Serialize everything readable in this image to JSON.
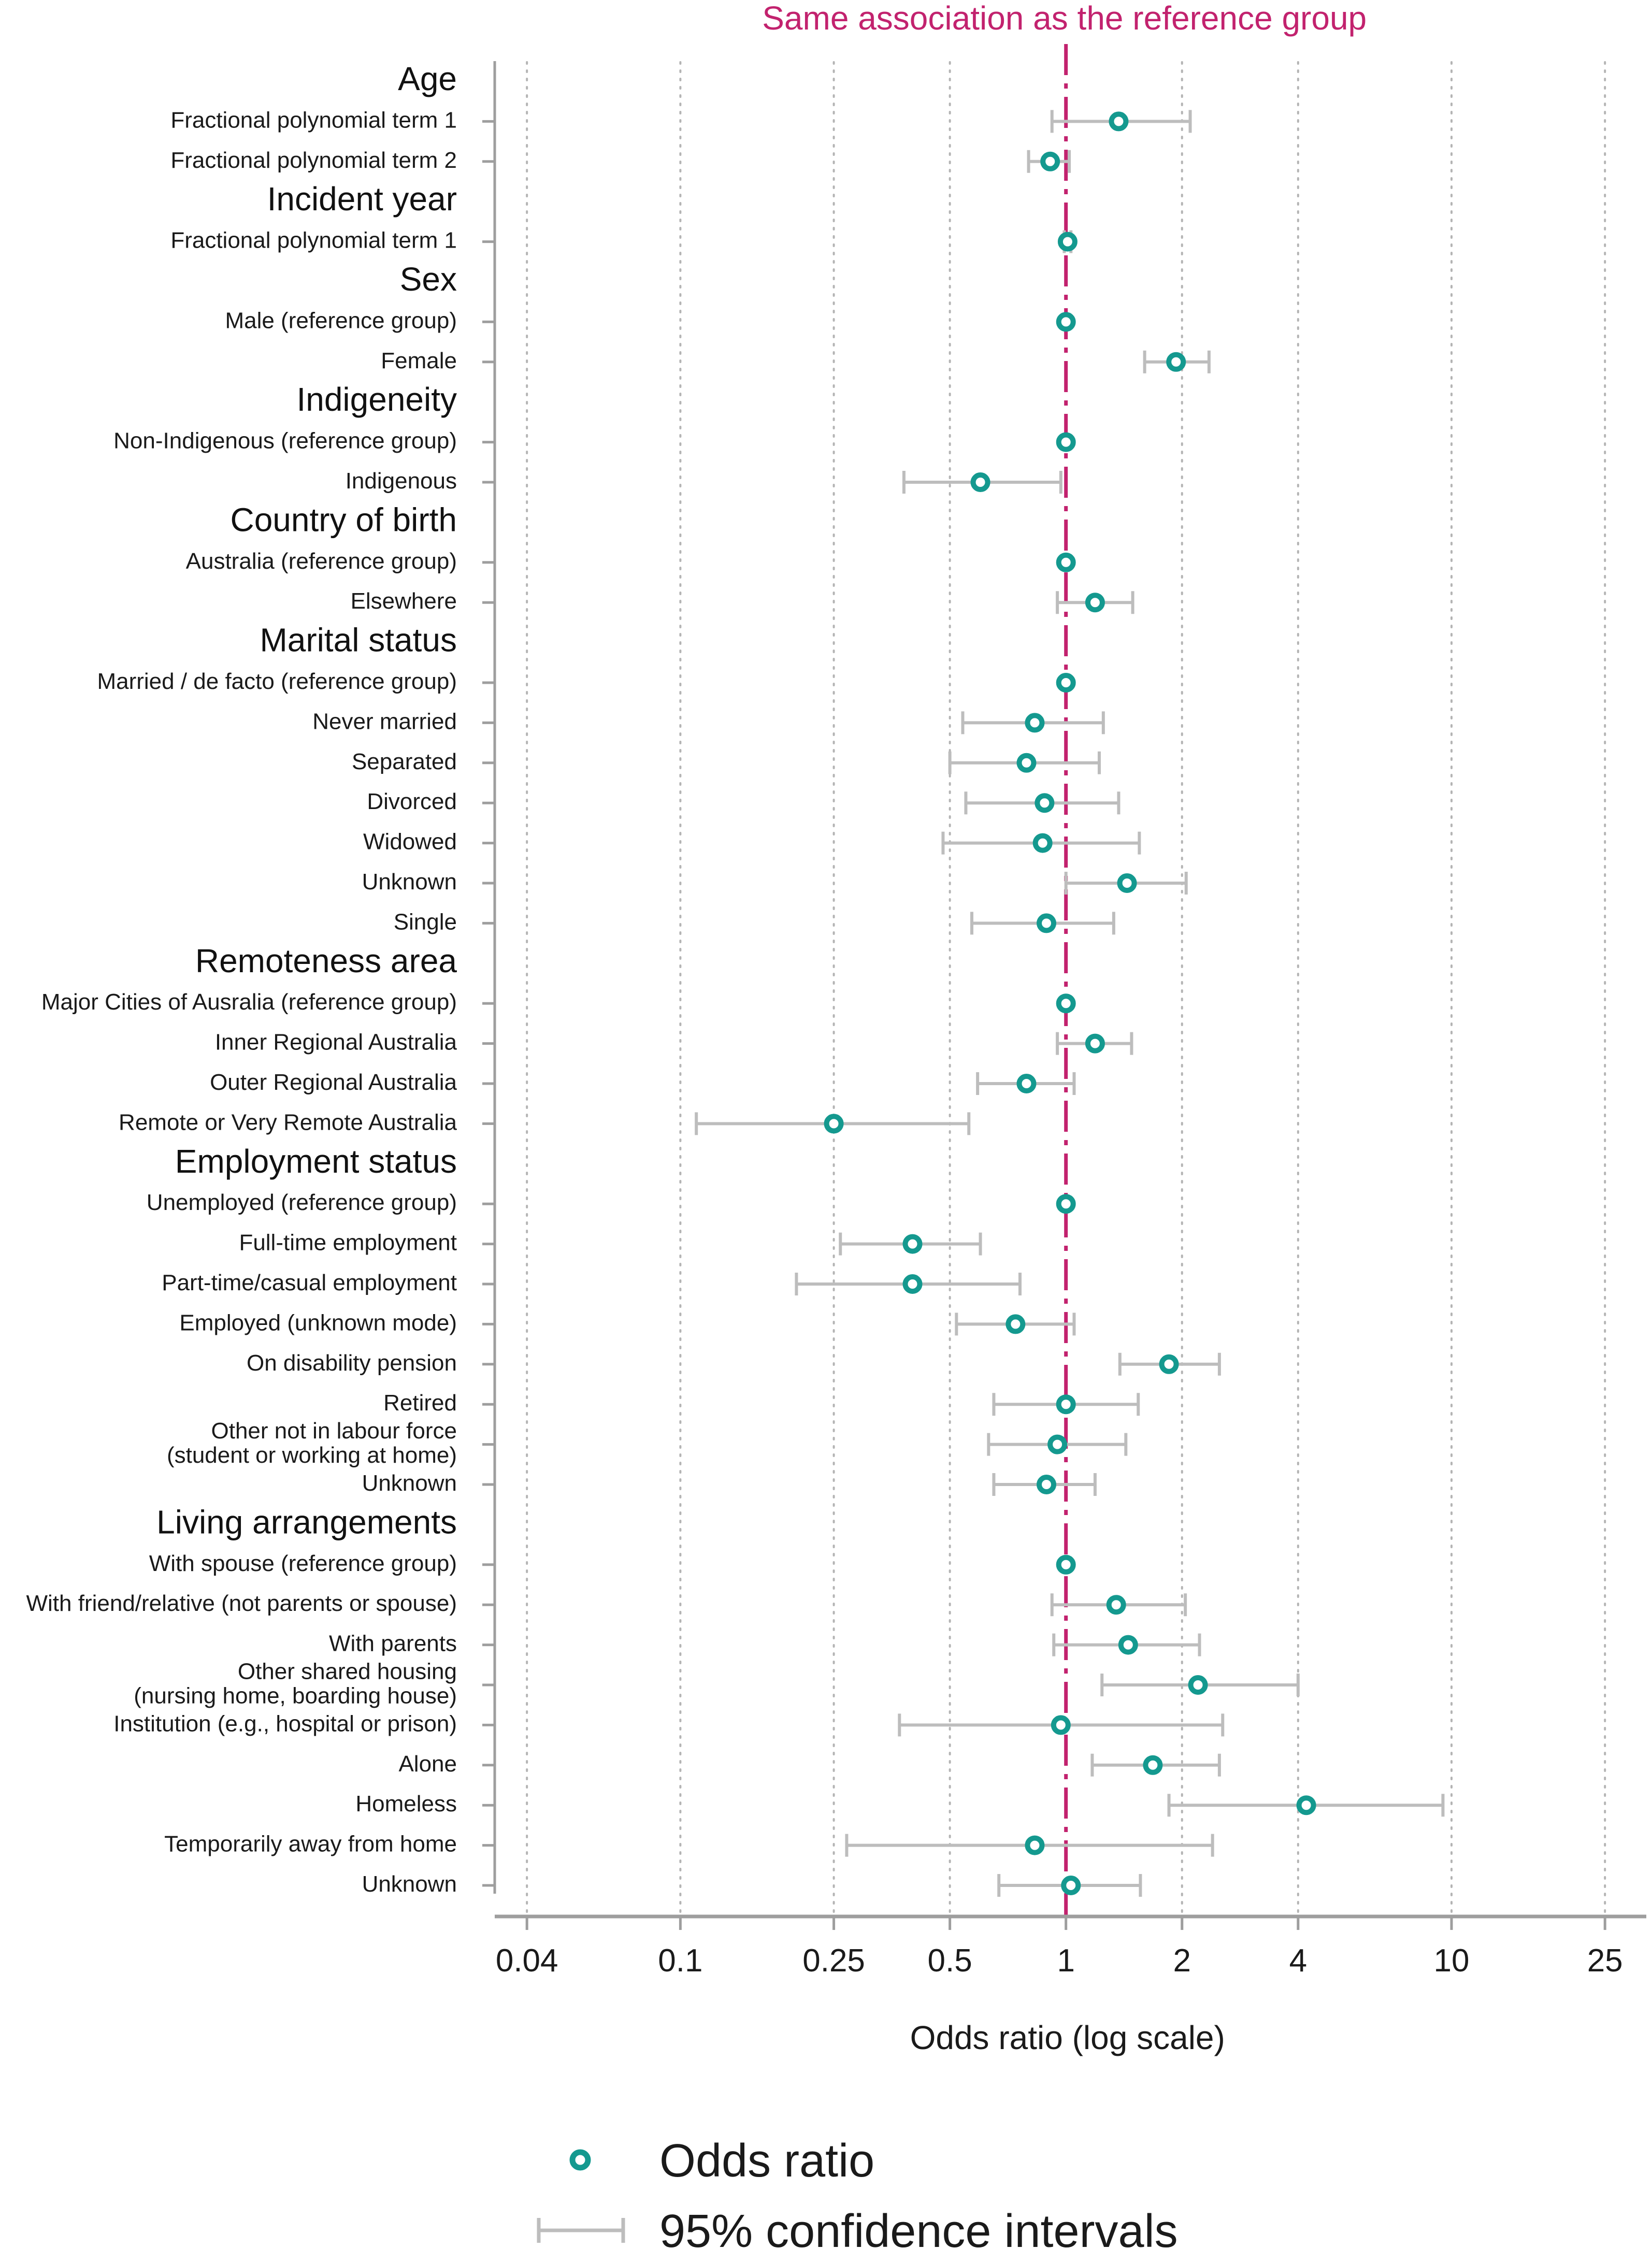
{
  "colors": {
    "point": "#14998f",
    "ci": "#bdbdbd",
    "reference": "#c2226e",
    "axis": "#9e9e9e",
    "grid": "#b4b4b4"
  },
  "reference_label": "Same association as the reference group",
  "legend": {
    "point_label": "Odds ratio",
    "ci_label": "95% confidence intervals"
  },
  "chart_data": {
    "type": "scatter",
    "subtype": "forest plot",
    "xlabel": "Odds ratio (log scale)",
    "xscale": "log",
    "xlim": [
      0.033,
      32
    ],
    "xticks": [
      0.04,
      0.1,
      0.25,
      0.5,
      1,
      2,
      4,
      10,
      25
    ],
    "xtick_labels": [
      "0.04",
      "0.1",
      "0.25",
      "0.5",
      "1",
      "2",
      "4",
      "10",
      "25"
    ],
    "reference_value": 1,
    "grid": "vertical dotted",
    "legend_position": "bottom",
    "rows": [
      {
        "label": "Age",
        "header": true
      },
      {
        "label": "Fractional polynomial term 1",
        "or": 1.37,
        "lo": 0.92,
        "hi": 2.1
      },
      {
        "label": "Fractional polynomial term 2",
        "or": 0.91,
        "lo": 0.8,
        "hi": 1.02
      },
      {
        "label": "Incident year",
        "header": true
      },
      {
        "label": "Fractional polynomial term 1",
        "or": 1.01,
        "lo": 0.99,
        "hi": 1.03
      },
      {
        "label": "Sex",
        "header": true
      },
      {
        "label": "Male (reference group)",
        "or": 1
      },
      {
        "label": "Female",
        "or": 1.93,
        "lo": 1.6,
        "hi": 2.35
      },
      {
        "label": "Indigeneity",
        "header": true
      },
      {
        "label": "Non-Indigenous (reference group)",
        "or": 1
      },
      {
        "label": "Indigenous",
        "or": 0.6,
        "lo": 0.38,
        "hi": 0.97
      },
      {
        "label": "Country of birth",
        "header": true
      },
      {
        "label": "Australia (reference group)",
        "or": 1
      },
      {
        "label": "Elsewhere",
        "or": 1.19,
        "lo": 0.95,
        "hi": 1.49
      },
      {
        "label": "Marital status",
        "header": true
      },
      {
        "label": "Married / de facto (reference group)",
        "or": 1
      },
      {
        "label": "Never married",
        "or": 0.83,
        "lo": 0.54,
        "hi": 1.25
      },
      {
        "label": "Separated",
        "or": 0.79,
        "lo": 0.5,
        "hi": 1.22
      },
      {
        "label": "Divorced",
        "or": 0.88,
        "lo": 0.55,
        "hi": 1.37
      },
      {
        "label": "Widowed",
        "or": 0.87,
        "lo": 0.48,
        "hi": 1.55
      },
      {
        "label": "Unknown",
        "or": 1.44,
        "lo": 1.0,
        "hi": 2.05
      },
      {
        "label": "Single",
        "or": 0.89,
        "lo": 0.57,
        "hi": 1.33
      },
      {
        "label": "Remoteness area",
        "header": true
      },
      {
        "label": "Major Cities of Ausralia (reference group)",
        "or": 1
      },
      {
        "label": "Inner Regional Australia",
        "or": 1.19,
        "lo": 0.95,
        "hi": 1.48
      },
      {
        "label": "Outer Regional Australia",
        "or": 0.79,
        "lo": 0.59,
        "hi": 1.05
      },
      {
        "label": "Remote or Very Remote Australia",
        "or": 0.25,
        "lo": 0.11,
        "hi": 0.56
      },
      {
        "label": "Employment status",
        "header": true
      },
      {
        "label": "Unemployed (reference group)",
        "or": 1
      },
      {
        "label": "Full-time employment",
        "or": 0.4,
        "lo": 0.26,
        "hi": 0.6
      },
      {
        "label": "Part-time/casual employment",
        "or": 0.4,
        "lo": 0.2,
        "hi": 0.76
      },
      {
        "label": "Employed (unknown mode)",
        "or": 0.74,
        "lo": 0.52,
        "hi": 1.05
      },
      {
        "label": "On disability pension",
        "or": 1.85,
        "lo": 1.38,
        "hi": 2.5
      },
      {
        "label": "Retired",
        "or": 1.0,
        "lo": 0.65,
        "hi": 1.54
      },
      {
        "label": "Other not in labour force\n(student or working at home)",
        "or": 0.95,
        "lo": 0.63,
        "hi": 1.43
      },
      {
        "label": "Unknown",
        "or": 0.89,
        "lo": 0.65,
        "hi": 1.19
      },
      {
        "label": "Living arrangements",
        "header": true
      },
      {
        "label": "With spouse (reference group)",
        "or": 1
      },
      {
        "label": "With friend/relative (not parents or spouse)",
        "or": 1.35,
        "lo": 0.92,
        "hi": 2.04
      },
      {
        "label": "With parents",
        "or": 1.45,
        "lo": 0.93,
        "hi": 2.22
      },
      {
        "label": "Other shared housing\n(nursing home, boarding house)",
        "or": 2.2,
        "lo": 1.24,
        "hi": 4.0
      },
      {
        "label": "Institution (e.g., hospital or prison)",
        "or": 0.97,
        "lo": 0.37,
        "hi": 2.55
      },
      {
        "label": "Alone",
        "or": 1.68,
        "lo": 1.17,
        "hi": 2.5
      },
      {
        "label": "Homeless",
        "or": 4.2,
        "lo": 1.85,
        "hi": 9.5
      },
      {
        "label": "Temporarily away from home",
        "or": 0.83,
        "lo": 0.27,
        "hi": 2.4
      },
      {
        "label": "Unknown",
        "or": 1.03,
        "lo": 0.67,
        "hi": 1.56
      }
    ]
  }
}
